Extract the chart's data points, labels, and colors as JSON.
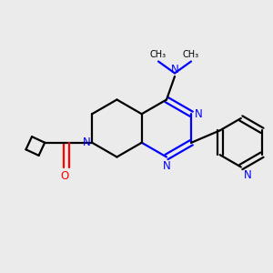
{
  "bg_color": "#ebebeb",
  "bond_color": "#000000",
  "n_color": "#0000ff",
  "o_color": "#ff0000",
  "line_width": 1.6,
  "font_size": 8.5,
  "figsize": [
    3.0,
    3.0
  ],
  "dpi": 100,
  "xlim": [
    0,
    10
  ],
  "ylim": [
    0,
    10
  ]
}
